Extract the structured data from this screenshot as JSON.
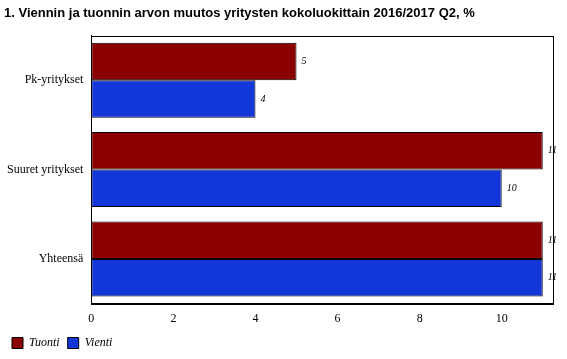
{
  "chart_data": {
    "type": "bar",
    "orientation": "horizontal",
    "title": "1. Viennin ja tuonnin arvon muutos yritysten kokoluokittain 2016/2017 Q2, %",
    "categories": [
      "Pk-yritykset",
      "Suuret yritykset",
      "Yhteensä"
    ],
    "series": [
      {
        "name": "Tuonti",
        "color": "#8b0000",
        "values": [
          5,
          11,
          11
        ]
      },
      {
        "name": "Vienti",
        "color": "#1236d8",
        "values": [
          4,
          10,
          11
        ]
      }
    ],
    "xlim": [
      0,
      11.25
    ],
    "xticks": [
      0,
      2,
      4,
      6,
      8,
      10
    ],
    "grid": false,
    "legend": "lower left",
    "data_labels": true
  }
}
